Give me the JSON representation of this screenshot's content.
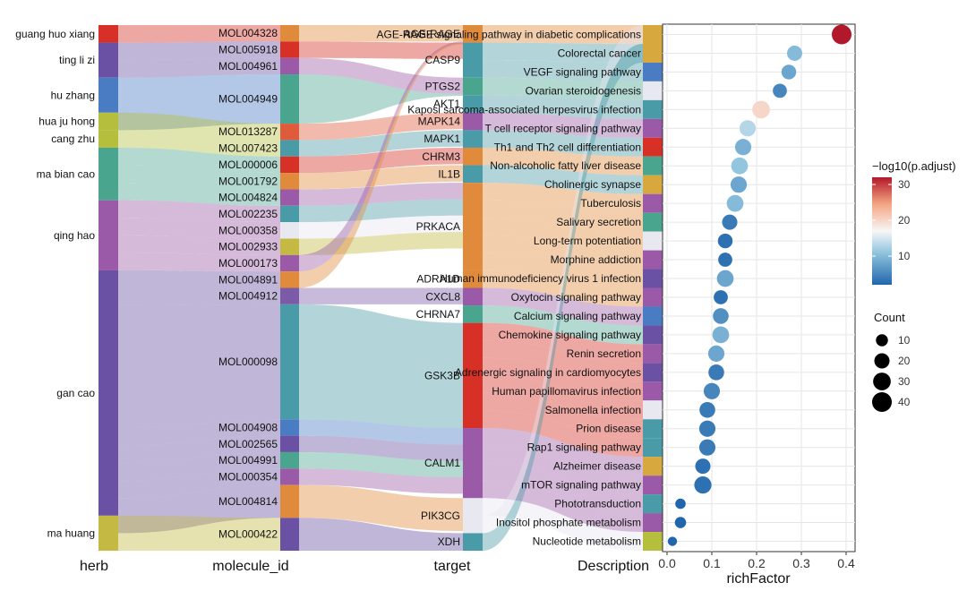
{
  "chart_data": {
    "type": "sankey",
    "axes": {
      "herb": "herb",
      "molecule": "molecule_id",
      "target": "target",
      "description": "Description"
    },
    "herbs": [
      {
        "name": "guang huo xiang",
        "color": "#d73027",
        "count": 1
      },
      {
        "name": "ting li zi",
        "color": "#6a51a3",
        "count": 2
      },
      {
        "name": "hu zhang",
        "color": "#4a7cc4",
        "count": 2
      },
      {
        "name": "hua ju hong",
        "color": "#b6bf3d",
        "count": 1
      },
      {
        "name": "cang zhu",
        "color": "#b6bf3d",
        "count": 1
      },
      {
        "name": "ma bian cao",
        "color": "#4aa58e",
        "count": 3
      },
      {
        "name": "qing hao",
        "color": "#9b5aa8",
        "count": 4
      },
      {
        "name": "gan cao",
        "color": "#6a51a3",
        "count": 14
      },
      {
        "name": "ma huang",
        "color": "#c4b943",
        "count": 2
      }
    ],
    "molecules": [
      {
        "name": "MOL004328",
        "color": "#e08a3c",
        "count": 1,
        "herb": "guang huo xiang",
        "target": "AGE-RAGE"
      },
      {
        "name": "MOL005918",
        "color": "#d73027",
        "count": 1,
        "herb": "ting li zi",
        "target": "CASP9"
      },
      {
        "name": "MOL004961",
        "color": "#9b5aa8",
        "count": 1,
        "herb": "ting li zi",
        "target": "PTGS2"
      },
      {
        "name": "MOL004949",
        "color": "#4aa58e",
        "count": 3,
        "herb": "hu zhang",
        "target": "PTGS2"
      },
      {
        "name": "MOL013287",
        "color": "#e05a3c",
        "count": 1,
        "herb": "hua ju hong",
        "target": "MAPK14"
      },
      {
        "name": "MOL007423",
        "color": "#4a9ba8",
        "count": 1,
        "herb": "cang zhu",
        "target": "MAPK1"
      },
      {
        "name": "MOL000006",
        "color": "#d73027",
        "count": 1,
        "herb": "ma bian cao",
        "target": "CHRM3"
      },
      {
        "name": "MOL001792",
        "color": "#e08a3c",
        "count": 1,
        "herb": "ma bian cao",
        "target": "IL1B"
      },
      {
        "name": "MOL004824",
        "color": "#9b5aa8",
        "count": 1,
        "herb": "ma bian cao",
        "target": "PRKACA"
      },
      {
        "name": "MOL002235",
        "color": "#4a9ba8",
        "count": 1,
        "herb": "qing hao",
        "target": "PRKACA"
      },
      {
        "name": "MOL000358",
        "color": "#e8e8f0",
        "count": 1,
        "herb": "qing hao",
        "target": "PRKACA"
      },
      {
        "name": "MOL002933",
        "color": "#c4b943",
        "count": 1,
        "herb": "qing hao",
        "target": "PRKACA"
      },
      {
        "name": "MOL000173",
        "color": "#9b5aa8",
        "count": 1,
        "herb": "qing hao",
        "target": "ADRA1"
      },
      {
        "name": "MOL004891",
        "color": "#e08a3c",
        "count": 1,
        "herb": "gan cao",
        "target": "ADRA1"
      },
      {
        "name": "MOL004912",
        "color": "#7b5aa8",
        "count": 1,
        "herb": "gan cao",
        "target": "CXCL8"
      },
      {
        "name": "MOL000098",
        "color": "#4a9ba8",
        "count": 7,
        "herb": "gan cao",
        "target": "GSK3B"
      },
      {
        "name": "MOL004908",
        "color": "#4a7cc4",
        "count": 1,
        "herb": "gan cao",
        "target": "CALM1"
      },
      {
        "name": "MOL002565",
        "color": "#6a51a3",
        "count": 1,
        "herb": "gan cao",
        "target": "CALM1"
      },
      {
        "name": "MOL004991",
        "color": "#4aa58e",
        "count": 1,
        "herb": "gan cao",
        "target": "CALM1"
      },
      {
        "name": "MOL000354",
        "color": "#9b5aa8",
        "count": 1,
        "herb": "gan cao",
        "target": "CALM1"
      },
      {
        "name": "MOL004814",
        "color": "#e08a3c",
        "count": 2,
        "herb": "gan cao",
        "target": "PIK3CG"
      },
      {
        "name": "MOL000422",
        "color": "#6a51a3",
        "count": 2,
        "herb": "ma huang",
        "target": "XDH"
      }
    ],
    "targets": [
      {
        "name": "AGE-RAGE",
        "color": "#e08a3c",
        "count": 1
      },
      {
        "name": "CASP9",
        "color": "#4a9ba8",
        "count": 2
      },
      {
        "name": "PTGS2",
        "color": "#4aa58e",
        "count": 1
      },
      {
        "name": "AKT1",
        "color": "#4a9ba8",
        "count": 1
      },
      {
        "name": "MAPK14",
        "color": "#9b5aa8",
        "count": 1
      },
      {
        "name": "MAPK1",
        "color": "#4a9ba8",
        "count": 1
      },
      {
        "name": "CHRM3",
        "color": "#e08a3c",
        "count": 1
      },
      {
        "name": "IL1B",
        "color": "#4a9ba8",
        "count": 1
      },
      {
        "name": "PRKACA",
        "color": "#e08a3c",
        "count": 5
      },
      {
        "name": "ADRA1D",
        "color": "#e08a3c",
        "count": 1
      },
      {
        "name": "CXCL8",
        "color": "#9b5aa8",
        "count": 1
      },
      {
        "name": "CHRNA7",
        "color": "#4aa58e",
        "count": 1
      },
      {
        "name": "GSK3B",
        "color": "#d73027",
        "count": 6
      },
      {
        "name": "CALM1",
        "color": "#9b5aa8",
        "count": 4
      },
      {
        "name": "PIK3CG",
        "color": "#e8e8f0",
        "count": 2
      },
      {
        "name": "XDH",
        "color": "#4a9ba8",
        "count": 1
      }
    ],
    "pathways": [
      {
        "name": "AGE-RAGE signaling pathway in diabetic complications",
        "color": "#d6a83e",
        "richFactor": 0.39,
        "padj": 32,
        "count": 40
      },
      {
        "name": "Colorectal cancer",
        "color": "#d6a83e",
        "richFactor": 0.285,
        "padj": 10,
        "count": 20
      },
      {
        "name": "VEGF signaling pathway",
        "color": "#4a7cc4",
        "richFactor": 0.272,
        "padj": 8,
        "count": 18
      },
      {
        "name": "Ovarian steroidogenesis",
        "color": "#e8e8f0",
        "richFactor": 0.252,
        "padj": 5,
        "count": 16
      },
      {
        "name": "Kaposi sarcoma-associated herpesvirus infection",
        "color": "#4a9ba8",
        "richFactor": 0.21,
        "padj": 20,
        "count": 30
      },
      {
        "name": "T cell receptor signaling pathway",
        "color": "#9b5aa8",
        "richFactor": 0.18,
        "padj": 13,
        "count": 24
      },
      {
        "name": "Th1 and Th2 cell differentiation",
        "color": "#d73027",
        "richFactor": 0.17,
        "padj": 9,
        "count": 24
      },
      {
        "name": "Non-alcoholic fatty liver disease",
        "color": "#4aa58e",
        "richFactor": 0.162,
        "padj": 11,
        "count": 26
      },
      {
        "name": "Cholinergic synapse",
        "color": "#d6a83e",
        "richFactor": 0.16,
        "padj": 8,
        "count": 24
      },
      {
        "name": "Tuberculosis",
        "color": "#9b5aa8",
        "richFactor": 0.152,
        "padj": 10,
        "count": 26
      },
      {
        "name": "Salivary secretion",
        "color": "#4aa58e",
        "richFactor": 0.14,
        "padj": 4,
        "count": 20
      },
      {
        "name": "Long-term potentiation",
        "color": "#e8e8f0",
        "richFactor": 0.13,
        "padj": 3,
        "count": 18
      },
      {
        "name": "Morphine addiction",
        "color": "#9b5aa8",
        "richFactor": 0.13,
        "padj": 3,
        "count": 16
      },
      {
        "name": "Human immunodeficiency virus 1 infection",
        "color": "#6a51a3",
        "richFactor": 0.13,
        "padj": 8,
        "count": 26
      },
      {
        "name": "Oxytocin signaling pathway",
        "color": "#9b5aa8",
        "richFactor": 0.12,
        "padj": 3,
        "count": 16
      },
      {
        "name": "Calcium signaling pathway",
        "color": "#4a7cc4",
        "richFactor": 0.12,
        "padj": 6,
        "count": 22
      },
      {
        "name": "Chemokine signaling pathway",
        "color": "#6a51a3",
        "richFactor": 0.12,
        "padj": 9,
        "count": 26
      },
      {
        "name": "Renin secretion",
        "color": "#9b5aa8",
        "richFactor": 0.11,
        "padj": 8,
        "count": 24
      },
      {
        "name": "Adrenergic signaling in cardiomyocytes",
        "color": "#6a51a3",
        "richFactor": 0.11,
        "padj": 4,
        "count": 22
      },
      {
        "name": "Human papillomavirus infection",
        "color": "#9b5aa8",
        "richFactor": 0.1,
        "padj": 5,
        "count": 24
      },
      {
        "name": "Salmonella infection",
        "color": "#e8e8f0",
        "richFactor": 0.09,
        "padj": 4,
        "count": 22
      },
      {
        "name": "Prion disease",
        "color": "#4a9ba8",
        "richFactor": 0.09,
        "padj": 4,
        "count": 24
      },
      {
        "name": "Rap1 signaling pathway",
        "color": "#4a9ba8",
        "richFactor": 0.09,
        "padj": 4,
        "count": 24
      },
      {
        "name": "Alzheimer disease",
        "color": "#d6a83e",
        "richFactor": 0.08,
        "padj": 3,
        "count": 20
      },
      {
        "name": "mTOR signaling pathway",
        "color": "#9b5aa8",
        "richFactor": 0.08,
        "padj": 3,
        "count": 28
      },
      {
        "name": "Phototransduction",
        "color": "#4a9ba8",
        "richFactor": 0.03,
        "padj": 2,
        "count": 6
      },
      {
        "name": "Inositol phosphate metabolism",
        "color": "#9b5aa8",
        "richFactor": 0.03,
        "padj": 2,
        "count": 8
      },
      {
        "name": "Nucleotide metabolism",
        "color": "#b6bf3d",
        "richFactor": 0.012,
        "padj": 2,
        "count": 4
      }
    ],
    "dotplot": {
      "xlabel": "richFactor",
      "xlim": [
        0,
        0.41
      ],
      "xticks": [
        "0.0",
        "0.1",
        "0.2",
        "0.3",
        "0.4"
      ],
      "grid": true
    },
    "legend_color": {
      "title": "−log10(p.adjust)",
      "ticks": [
        "30",
        "20",
        "10"
      ],
      "range": [
        2,
        32
      ],
      "low_color": "#2166ac",
      "mid_color": "#f7f7f7",
      "high_color": "#b2182b"
    },
    "legend_size": {
      "title": "Count",
      "items": [
        "10",
        "20",
        "30",
        "40"
      ]
    }
  }
}
